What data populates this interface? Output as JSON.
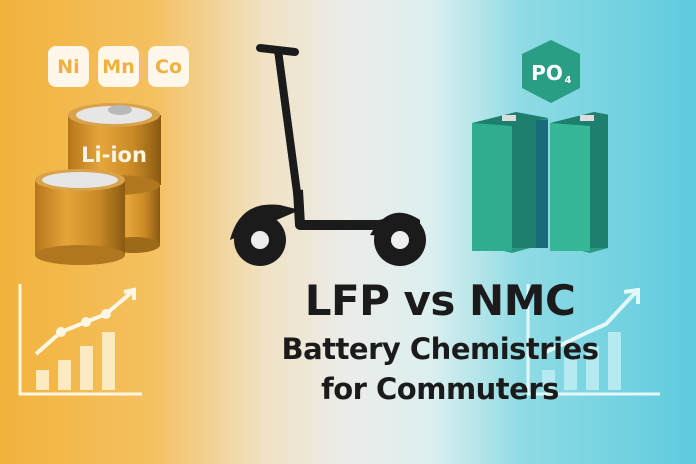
{
  "nmc_badges": [
    "Ni",
    "Mn",
    "Co"
  ],
  "lfp_badge": {
    "main": "PO",
    "sub": "4"
  },
  "nmc_cell_label": "Li-ion",
  "headline": {
    "line1": "LFP vs NMC",
    "line2": "Battery Chemistries",
    "line3": "for Commuters"
  },
  "colors": {
    "nmc_accent": "#f2b33c",
    "lfp_accent": "#2a9d85",
    "text": "#1b1b1b",
    "sky": "#5ecbde"
  }
}
